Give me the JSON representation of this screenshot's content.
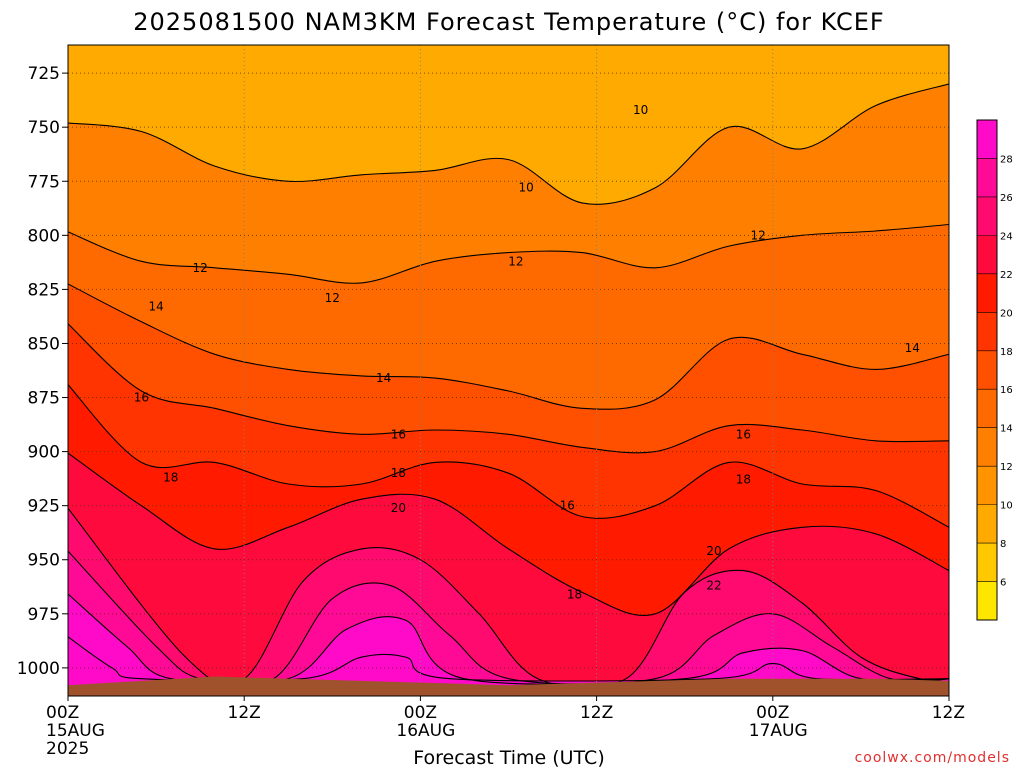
{
  "chart_data": {
    "type": "heatmap",
    "title": "2025081500 NAM3KM Forecast Temperature (°C) for KCEF",
    "xlabel": "Forecast Time (UTC)",
    "ylabel": "",
    "x_ticks": [
      {
        "label": "00Z",
        "sub": [
          "15AUG",
          "2025"
        ]
      },
      {
        "label": "12Z",
        "sub": []
      },
      {
        "label": "00Z",
        "sub": [
          "16AUG"
        ]
      },
      {
        "label": "12Z",
        "sub": []
      },
      {
        "label": "00Z",
        "sub": [
          "17AUG"
        ]
      },
      {
        "label": "12Z",
        "sub": []
      }
    ],
    "x_hours": [
      0,
      12,
      24,
      36,
      48,
      60
    ],
    "x_range_hours": [
      0,
      60
    ],
    "y_ticks": [
      725,
      750,
      775,
      800,
      825,
      850,
      875,
      900,
      925,
      950,
      975,
      1000
    ],
    "y_range_hPa": [
      712,
      1013
    ],
    "ground_level_hPa": [
      1008,
      1006,
      1004,
      1005,
      1006,
      1007,
      1008,
      1007,
      1006,
      1005,
      1005,
      1005,
      1006
    ],
    "colorbar": {
      "levels": [
        4,
        6,
        8,
        10,
        12,
        14,
        16,
        18,
        20,
        22,
        24,
        26,
        28,
        30
      ],
      "labels": [
        6,
        8,
        10,
        12,
        14,
        16,
        18,
        20,
        22,
        24,
        26,
        28
      ],
      "colors": [
        "#ffe600",
        "#ffc800",
        "#ffaa00",
        "#ff9400",
        "#ff8000",
        "#ff6a00",
        "#ff5000",
        "#ff3400",
        "#ff1a00",
        "#ff0a3c",
        "#ff0a6e",
        "#ff0a96",
        "#ff0ac8"
      ]
    },
    "grid": true,
    "series": [
      {
        "name": "10",
        "hours": [
          0,
          5,
          10,
          15,
          20,
          25,
          30,
          35,
          40,
          45,
          50,
          55,
          60
        ],
        "values": [
          748,
          752,
          768,
          775,
          772,
          770,
          765,
          785,
          778,
          750,
          760,
          740,
          730
        ]
      },
      {
        "name": "12",
        "hours": [
          0,
          5,
          10,
          15,
          20,
          25,
          30,
          35,
          40,
          45,
          50,
          55,
          60
        ],
        "values": [
          798,
          812,
          815,
          818,
          822,
          812,
          808,
          808,
          815,
          805,
          800,
          798,
          795
        ]
      },
      {
        "name": "14",
        "hours": [
          0,
          5,
          10,
          15,
          20,
          25,
          30,
          35,
          40,
          45,
          50,
          55,
          60
        ],
        "values": [
          822,
          840,
          855,
          862,
          865,
          866,
          872,
          880,
          876,
          848,
          855,
          862,
          855
        ]
      },
      {
        "name": "16",
        "hours": [
          0,
          5,
          10,
          15,
          20,
          25,
          30,
          35,
          40,
          45,
          50,
          55,
          60
        ],
        "values": [
          840,
          872,
          880,
          888,
          892,
          890,
          892,
          898,
          900,
          888,
          890,
          895,
          895
        ]
      },
      {
        "name": "18",
        "hours": [
          0,
          5,
          10,
          15,
          20,
          25,
          30,
          35,
          40,
          45,
          50,
          55,
          60
        ],
        "values": [
          868,
          905,
          905,
          915,
          915,
          905,
          910,
          930,
          925,
          905,
          915,
          918,
          935
        ]
      },
      {
        "name": "20",
        "hours": [
          0,
          5,
          10,
          15,
          20,
          25,
          30,
          35,
          40,
          45,
          50,
          55,
          60
        ],
        "values": [
          900,
          925,
          945,
          935,
          922,
          922,
          945,
          965,
          975,
          945,
          935,
          938,
          955
        ]
      },
      {
        "name": "22",
        "hours": [
          0,
          8,
          12,
          16,
          20,
          24,
          28,
          32,
          38,
          42,
          46,
          50,
          54,
          58
        ],
        "values": [
          925,
          995,
          1005,
          960,
          945,
          950,
          975,
          1005,
          1005,
          965,
          955,
          970,
          995,
          1005
        ]
      },
      {
        "name": "24",
        "hours": [
          0,
          6,
          9,
          14,
          18,
          22,
          26,
          30,
          40,
          44,
          48,
          52,
          56
        ],
        "values": [
          945,
          990,
          1005,
          1005,
          968,
          962,
          985,
          1005,
          1005,
          985,
          975,
          990,
          1005
        ]
      },
      {
        "name": "26",
        "hours": [
          0,
          4,
          7,
          15,
          19,
          23,
          27,
          42,
          46,
          50,
          54
        ],
        "values": [
          965,
          990,
          1005,
          1005,
          982,
          978,
          1005,
          1005,
          993,
          992,
          1005
        ]
      },
      {
        "name": "28",
        "hours": [
          0,
          3,
          5,
          16,
          20,
          23,
          26,
          44,
          48,
          51
        ],
        "values": [
          985,
          1000,
          1005,
          1005,
          995,
          995,
          1005,
          1005,
          998,
          1005
        ]
      }
    ],
    "contour_labels": [
      {
        "text": "10",
        "hour": 31.2,
        "hPa": 778
      },
      {
        "text": "10",
        "hour": 39.0,
        "hPa": 742
      },
      {
        "text": "12",
        "hour": 9.0,
        "hPa": 815
      },
      {
        "text": "12",
        "hour": 18.0,
        "hPa": 829
      },
      {
        "text": "12",
        "hour": 30.5,
        "hPa": 812
      },
      {
        "text": "12",
        "hour": 47.0,
        "hPa": 800
      },
      {
        "text": "14",
        "hour": 6.0,
        "hPa": 833
      },
      {
        "text": "14",
        "hour": 21.5,
        "hPa": 866
      },
      {
        "text": "14",
        "hour": 57.5,
        "hPa": 852
      },
      {
        "text": "16",
        "hour": 5.0,
        "hPa": 875
      },
      {
        "text": "16",
        "hour": 22.5,
        "hPa": 892
      },
      {
        "text": "16",
        "hour": 34.0,
        "hPa": 925
      },
      {
        "text": "16",
        "hour": 46.0,
        "hPa": 892
      },
      {
        "text": "18",
        "hour": 7.0,
        "hPa": 912
      },
      {
        "text": "18",
        "hour": 22.5,
        "hPa": 910
      },
      {
        "text": "18",
        "hour": 34.5,
        "hPa": 966
      },
      {
        "text": "18",
        "hour": 46.0,
        "hPa": 913
      },
      {
        "text": "20",
        "hour": 22.5,
        "hPa": 926
      },
      {
        "text": "20",
        "hour": 44.0,
        "hPa": 946
      },
      {
        "text": "22",
        "hour": 44.0,
        "hPa": 962
      }
    ]
  },
  "footer": {
    "credit": "coolwx.com/models"
  }
}
